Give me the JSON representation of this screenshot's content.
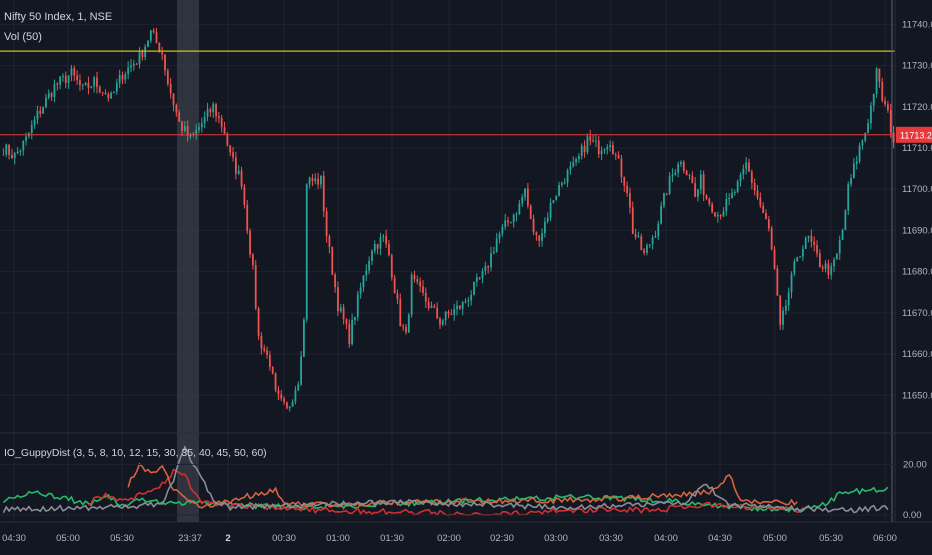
{
  "main_legend": {
    "symbol_line": "Nifty 50 Index, 1, NSE",
    "volume_line": "Vol (50)"
  },
  "sub_legend": "IO_GuppyDist (3, 5, 8, 10, 12, 15, 30, 35, 40, 45, 50, 60)",
  "colors": {
    "background": "#131722",
    "grid": "#1f2330",
    "up": "#26a69a",
    "down": "#ef5350",
    "resistance": "#c9c217",
    "last_price_line": "#e5393a",
    "session_band": "#3a3d47",
    "guppy_green": "#26b86b",
    "guppy_red": "#d32f2f",
    "guppy_orange": "#d7623e",
    "guppy_gray": "#8a8d96"
  },
  "last_price_label": "11713.20",
  "chart_data": [
    {
      "type": "candlestick",
      "title": "Nifty 50 Index, 1, NSE",
      "yticks": [
        "11740.00",
        "11730.00",
        "11720.00",
        "11710.00",
        "11700.00",
        "11690.00",
        "11680.00",
        "11670.00",
        "11660.00",
        "11650.00"
      ],
      "ytick_values": [
        11740,
        11730,
        11720,
        11710,
        11700,
        11690,
        11680,
        11670,
        11660,
        11650
      ],
      "ylim": [
        11644,
        11743
      ],
      "xticks": [
        "04:30",
        "05:00",
        "05:30",
        "23:37",
        "2",
        "00:30",
        "01:00",
        "01:30",
        "02:00",
        "02:30",
        "03:00",
        "03:30",
        "04:00",
        "04:30",
        "05:00",
        "05:30",
        "06:00"
      ],
      "resistance_level": 11733.5,
      "last_price": 11713.2,
      "path_anchors": [
        [
          0,
          11710
        ],
        [
          4,
          11708
        ],
        [
          8,
          11712
        ],
        [
          12,
          11718
        ],
        [
          18,
          11725
        ],
        [
          24,
          11728
        ],
        [
          28,
          11724
        ],
        [
          32,
          11726
        ],
        [
          38,
          11722
        ],
        [
          42,
          11728
        ],
        [
          48,
          11732
        ],
        [
          52,
          11738
        ],
        [
          56,
          11733
        ],
        [
          58,
          11726
        ],
        [
          62,
          11716
        ],
        [
          66,
          11712
        ],
        [
          70,
          11716
        ],
        [
          74,
          11720
        ],
        [
          78,
          11714
        ],
        [
          80,
          11708
        ],
        [
          84,
          11702
        ],
        [
          88,
          11680
        ],
        [
          90,
          11664
        ],
        [
          94,
          11658
        ],
        [
          96,
          11650
        ],
        [
          100,
          11646
        ],
        [
          104,
          11654
        ],
        [
          106,
          11668
        ],
        [
          107,
          11702
        ],
        [
          112,
          11702
        ],
        [
          114,
          11689
        ],
        [
          118,
          11672
        ],
        [
          122,
          11664
        ],
        [
          126,
          11676
        ],
        [
          130,
          11686
        ],
        [
          134,
          11688
        ],
        [
          136,
          11684
        ],
        [
          138,
          11676
        ],
        [
          140,
          11668
        ],
        [
          142,
          11664
        ],
        [
          144,
          11678
        ],
        [
          147,
          11675
        ],
        [
          150,
          11672
        ],
        [
          154,
          11668
        ],
        [
          158,
          11670
        ],
        [
          162,
          11672
        ],
        [
          166,
          11676
        ],
        [
          170,
          11680
        ],
        [
          174,
          11688
        ],
        [
          178,
          11692
        ],
        [
          182,
          11696
        ],
        [
          184,
          11700
        ],
        [
          186,
          11692
        ],
        [
          188,
          11688
        ],
        [
          190,
          11690
        ],
        [
          194,
          11698
        ],
        [
          198,
          11703
        ],
        [
          202,
          11706
        ],
        [
          206,
          11712
        ],
        [
          210,
          11710
        ],
        [
          214,
          11712
        ],
        [
          216,
          11708
        ],
        [
          220,
          11700
        ],
        [
          222,
          11690
        ],
        [
          226,
          11684
        ],
        [
          230,
          11690
        ],
        [
          234,
          11700
        ],
        [
          238,
          11707
        ],
        [
          242,
          11704
        ],
        [
          244,
          11698
        ],
        [
          246,
          11702
        ],
        [
          248,
          11698
        ],
        [
          252,
          11694
        ],
        [
          256,
          11697
        ],
        [
          260,
          11702
        ],
        [
          262,
          11706
        ],
        [
          266,
          11698
        ],
        [
          270,
          11690
        ],
        [
          272,
          11680
        ],
        [
          274,
          11666
        ],
        [
          276,
          11672
        ],
        [
          280,
          11684
        ],
        [
          284,
          11688
        ],
        [
          288,
          11682
        ],
        [
          292,
          11680
        ],
        [
          294,
          11684
        ],
        [
          296,
          11690
        ],
        [
          298,
          11700
        ],
        [
          302,
          11710
        ],
        [
          304,
          11714
        ],
        [
          306,
          11720
        ],
        [
          308,
          11728
        ],
        [
          310,
          11722
        ],
        [
          312,
          11718
        ],
        [
          314,
          11712
        ]
      ]
    },
    {
      "type": "line",
      "title": "IO_GuppyDist (3, 5, 8, 10, 12, 15, 30, 35, 40, 45, 50, 60)",
      "yticks": [
        "20.00",
        "0.00"
      ],
      "ytick_values": [
        20,
        0
      ],
      "ylim": [
        -2,
        30
      ],
      "series": [
        {
          "color": "guppy_green",
          "anchors": [
            [
              0,
              6
            ],
            [
              12,
              9
            ],
            [
              24,
              6
            ],
            [
              30,
              4
            ],
            [
              36,
              8
            ],
            [
              42,
              4
            ],
            [
              48,
              6
            ],
            [
              60,
              5
            ],
            [
              80,
              4
            ],
            [
              110,
              3
            ],
            [
              130,
              4
            ],
            [
              150,
              5
            ],
            [
              170,
              6
            ],
            [
              200,
              7
            ],
            [
              230,
              6
            ],
            [
              260,
              3
            ],
            [
              280,
              2
            ],
            [
              290,
              4
            ],
            [
              296,
              9
            ],
            [
              312,
              10
            ]
          ]
        },
        {
          "color": "guppy_red",
          "anchors": [
            [
              30,
              5
            ],
            [
              36,
              8
            ],
            [
              42,
              5
            ],
            [
              56,
              12
            ],
            [
              60,
              17
            ],
            [
              64,
              15
            ],
            [
              70,
              5
            ],
            [
              80,
              4
            ],
            [
              110,
              2
            ],
            [
              150,
              1
            ],
            [
              170,
              0
            ],
            [
              200,
              2
            ],
            [
              230,
              2
            ],
            [
              250,
              4
            ],
            [
              262,
              3
            ],
            [
              266,
              3
            ],
            [
              282,
              2
            ]
          ]
        },
        {
          "color": "guppy_orange",
          "anchors": [
            [
              44,
              12
            ],
            [
              48,
              20
            ],
            [
              52,
              16
            ],
            [
              56,
              20
            ],
            [
              60,
              10
            ],
            [
              70,
              3
            ],
            [
              96,
              10
            ],
            [
              100,
              4
            ],
            [
              150,
              5
            ],
            [
              210,
              6
            ],
            [
              250,
              9
            ],
            [
              256,
              16
            ],
            [
              260,
              5
            ],
            [
              280,
              5
            ]
          ]
        },
        {
          "color": "guppy_gray",
          "anchors": [
            [
              0,
              2
            ],
            [
              30,
              3
            ],
            [
              56,
              4
            ],
            [
              60,
              14
            ],
            [
              64,
              27
            ],
            [
              68,
              18
            ],
            [
              74,
              6
            ],
            [
              80,
              3
            ],
            [
              140,
              5
            ],
            [
              200,
              3
            ],
            [
              240,
              5
            ],
            [
              248,
              12
            ],
            [
              256,
              4
            ],
            [
              270,
              3
            ],
            [
              300,
              2
            ],
            [
              312,
              3
            ]
          ]
        }
      ]
    }
  ]
}
